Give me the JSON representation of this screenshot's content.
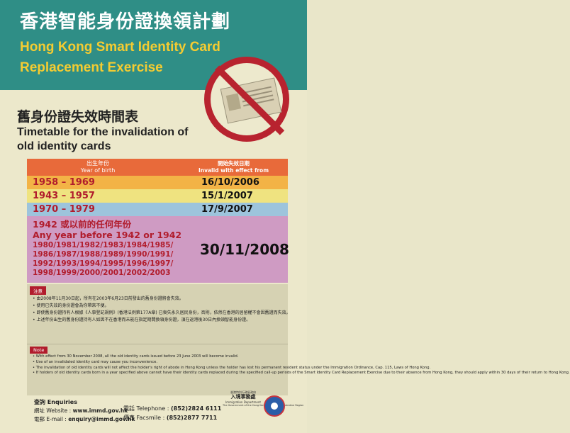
{
  "header": {
    "title_zh": "香港智能身份證換領計劃",
    "title_en_line1": "Hong Kong Smart Identity Card",
    "title_en_line2": "Replacement Exercise"
  },
  "timetable": {
    "title_zh": "舊身份證失效時間表",
    "title_en_line1": "Timetable for the invalidation of",
    "title_en_line2": "old identity cards"
  },
  "table": {
    "header_year_zh": "出生年份",
    "header_year_en": "Year of birth",
    "header_date_zh": "開始失效日期",
    "header_date_en": "Invalid with effect from",
    "rows": [
      {
        "years": "1958 – 1969",
        "date": "16/10/2006"
      },
      {
        "years": "1943 – 1957",
        "date": "15/1/2007"
      },
      {
        "years": "1970 – 1979",
        "date": "17/9/2007"
      }
    ],
    "last_row": {
      "years_zh": "1942 或以前的任何年份",
      "years_en": "Any year before 1942 or 1942",
      "years_list": "1980/1981/1982/1983/1984/1985/ 1986/1987/1988/1989/1990/1991/ 1992/1993/1994/1995/1996/1997/ 1998/1999/2000/2001/2002/2003",
      "date": "30/11/2008"
    }
  },
  "notes_zh": {
    "label": "注意",
    "items": [
      "由2008年11月30日起，所有在2003年6月23日前發出的舊身份證將會失效。",
      "使用已失效的身份證會為你帶來不便。",
      "即使舊身份證持有人根據《人事登記規例》(香港法例第177A章) 已喪失永久居民身份，否則，依然在香港的居留權不會因舊證而失效。",
      "上述年份出生的舊身份證持有人如因不在香港而未能在指定期間換領身份證，須在返港後30日內換領智能身份證。"
    ]
  },
  "notes_en": {
    "label": "Note",
    "items": [
      "With effect from 30 November 2008, all the old identity cards issued before 23 June 2003 will become invalid.",
      "Use of an invalidated identity card may cause you inconvenience.",
      "The invalidation of old identity cards will not affect the holder's right of abode in Hong Kong unless the holder has lost his permanent resident status under the Immigration Ordinance, Cap. 115, Laws of Hong Kong.",
      "If holders of old identity cards born in a year specified above cannot have their identity cards replaced during the specified call-up periods of the Smart Identity Card Replacement Exercise due to their absence from Hong Kong, they should apply within 30 days of their return to Hong Kong."
    ]
  },
  "enquiries": {
    "title": "查詢  Enquiries",
    "website_label": "網址 Website :",
    "website": "www.immd.gov.hk",
    "email_label": "電郵 E-mail :",
    "email": "enquiry@immd.gov.hk",
    "tel_label": "電話 Telephone :",
    "tel": "(852)2824 6111",
    "fax_label": "傳真 Facsmile :",
    "fax": "(852)2877 7711"
  },
  "department": {
    "govt_zh": "香港特別行政區政府",
    "name_zh": "入境事務處",
    "name_en": "Immigration Department",
    "govt_en": "The Government of the Hong Kong Special Administrative Region"
  }
}
